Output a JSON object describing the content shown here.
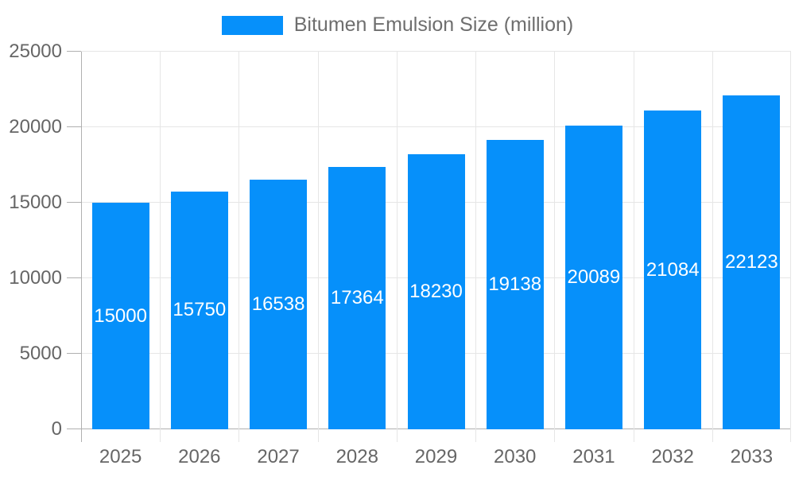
{
  "legend": {
    "label": "Bitumen Emulsion Size (million)"
  },
  "colors": {
    "bar": "#0690fa",
    "bar_label": "#ffffff",
    "axis_text": "#666666",
    "legend_text": "#6e6e6e",
    "grid_line": "#e6e6e6",
    "axis_line": "#b0b0b0"
  },
  "chart_data": {
    "type": "bar",
    "title": "Bitumen Emulsion Size (million)",
    "categories": [
      "2025",
      "2026",
      "2027",
      "2028",
      "2029",
      "2030",
      "2031",
      "2032",
      "2033"
    ],
    "values": [
      15000,
      15750,
      16538,
      17364,
      18230,
      19138,
      20089,
      21084,
      22123
    ],
    "series": [
      {
        "name": "Bitumen Emulsion Size (million)",
        "values": [
          15000,
          15750,
          16538,
          17364,
          18230,
          19138,
          20089,
          21084,
          22123
        ]
      }
    ],
    "xlabel": "",
    "ylabel": "",
    "ylim": [
      0,
      25000
    ],
    "yticks": [
      0,
      5000,
      10000,
      15000,
      20000,
      25000
    ],
    "grid": true,
    "legend_position": "top",
    "value_label_position": "inside-center"
  }
}
